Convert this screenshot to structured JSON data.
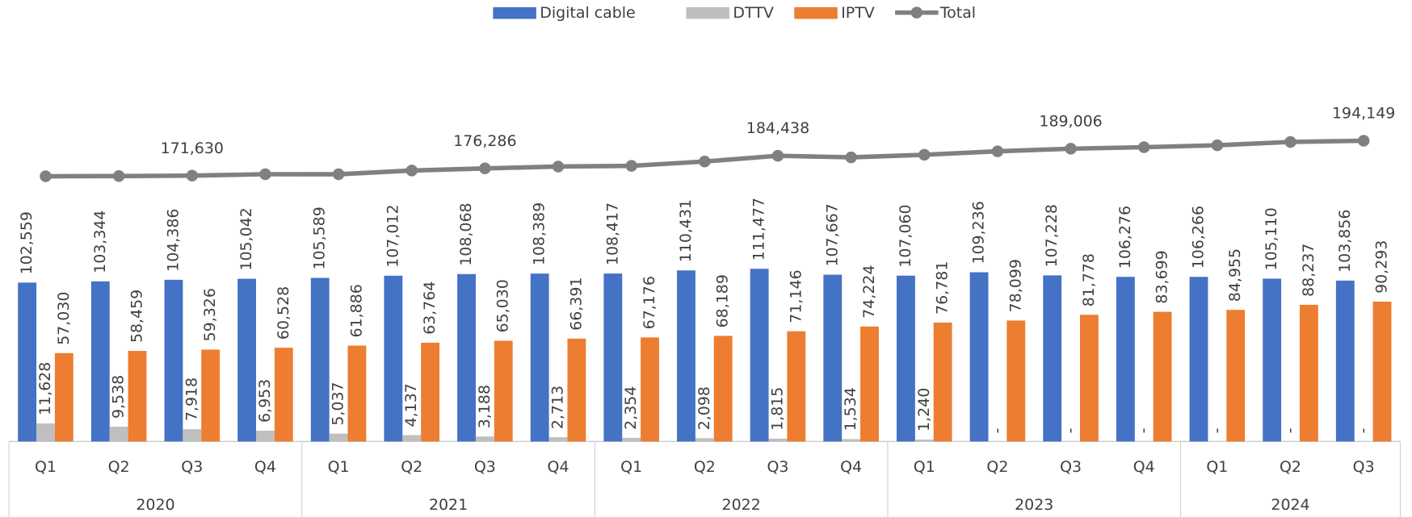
{
  "chart_data": {
    "type": "bar",
    "categories": [
      "Q1",
      "Q2",
      "Q3",
      "Q4",
      "Q1",
      "Q2",
      "Q3",
      "Q4",
      "Q1",
      "Q2",
      "Q3",
      "Q4",
      "Q1",
      "Q2",
      "Q3",
      "Q4",
      "Q1",
      "Q2",
      "Q3"
    ],
    "years": [
      "2020",
      "2021",
      "2022",
      "2023",
      "2024"
    ],
    "ylim": [
      0,
      285000
    ],
    "legend": "top",
    "series": [
      {
        "name": "Digital cable",
        "color": "#4472c4",
        "kind": "bar",
        "values": [
          102559,
          103344,
          104386,
          105042,
          105589,
          107012,
          108068,
          108389,
          108417,
          110431,
          111477,
          107667,
          107060,
          109236,
          107228,
          106276,
          106266,
          105110,
          103856
        ],
        "value_labels": [
          "102,559",
          "103,344",
          "104,386",
          "105,042",
          "105,589",
          "107,012",
          "108,068",
          "108,389",
          "108,417",
          "110,431",
          "111,477",
          "107,667",
          "107,060",
          "109,236",
          "107,228",
          "106,276",
          "106,266",
          "105,110",
          "103,856"
        ]
      },
      {
        "name": "DTTV",
        "color": "#bfbfbf",
        "kind": "bar",
        "values": [
          11628,
          9538,
          7918,
          6953,
          5037,
          4137,
          3188,
          2713,
          2354,
          2098,
          1815,
          1534,
          1240,
          0,
          0,
          0,
          0,
          0,
          0
        ],
        "value_labels": [
          "11,628",
          "9,538",
          "7,918",
          "6,953",
          "5,037",
          "4,137",
          "3,188",
          "2,713",
          "2,354",
          "2,098",
          "1,815",
          "1,534",
          "1,240",
          "-",
          "-",
          "-",
          "-",
          "-",
          "-"
        ]
      },
      {
        "name": "IPTV",
        "color": "#ed7d31",
        "kind": "bar",
        "values": [
          57030,
          58459,
          59326,
          60528,
          61886,
          63764,
          65030,
          66391,
          67176,
          68189,
          71146,
          74224,
          76781,
          78099,
          81778,
          83699,
          84955,
          88237,
          90293
        ],
        "value_labels": [
          "57,030",
          "58,459",
          "59,326",
          "60,528",
          "61,886",
          "63,764",
          "65,030",
          "66,391",
          "67,176",
          "68,189",
          "71,146",
          "74,224",
          "76,781",
          "78,099",
          "81,778",
          "83,699",
          "84,955",
          "88,237",
          "90,293"
        ]
      },
      {
        "name": "Total",
        "color": "#808080",
        "kind": "line",
        "values": [
          171217,
          171341,
          171630,
          172523,
          172512,
          174913,
          176286,
          177493,
          177947,
          180718,
          184438,
          183425,
          185081,
          187335,
          189006,
          189975,
          191221,
          193347,
          194149
        ],
        "value_labels": [
          null,
          null,
          "171,630",
          null,
          null,
          null,
          "176,286",
          null,
          null,
          null,
          "184,438",
          null,
          null,
          null,
          "189,006",
          null,
          null,
          null,
          "194,149"
        ]
      }
    ]
  }
}
